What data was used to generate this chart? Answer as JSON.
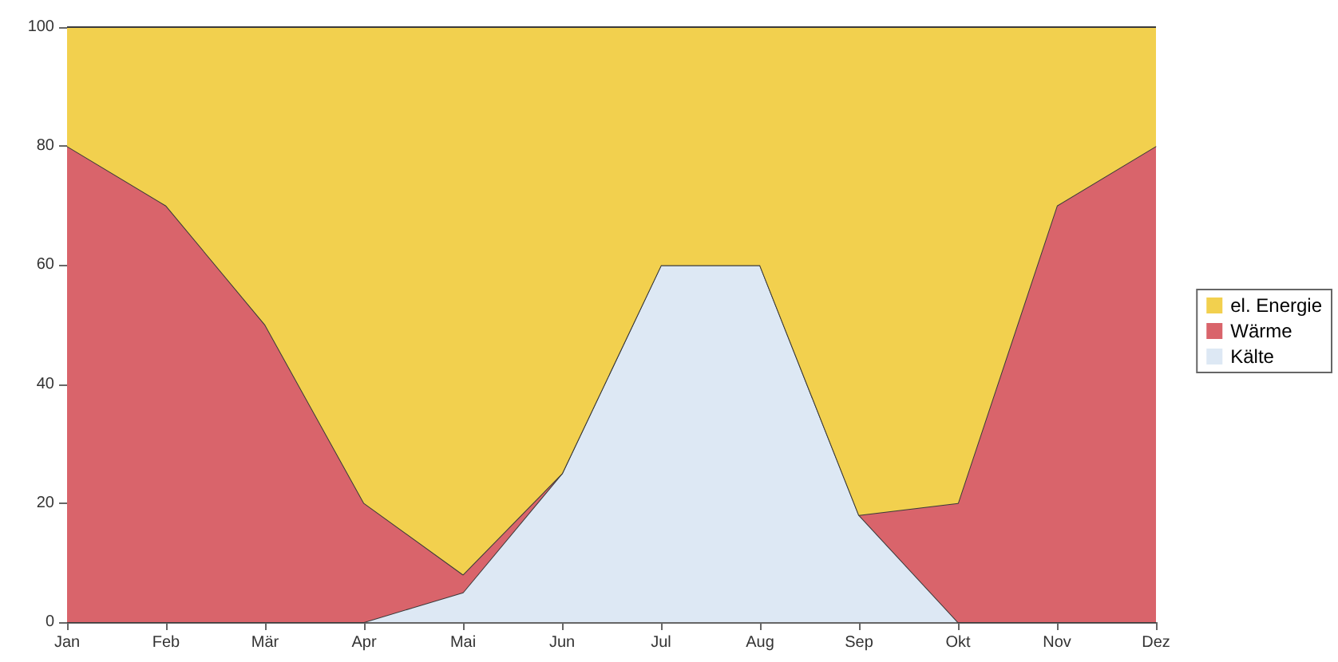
{
  "chart_data": {
    "type": "area",
    "stacked": true,
    "categories": [
      "Jan",
      "Feb",
      "Mär",
      "Apr",
      "Mai",
      "Jun",
      "Jul",
      "Aug",
      "Sep",
      "Okt",
      "Nov",
      "Dez"
    ],
    "series": [
      {
        "name": "Kälte",
        "color": "#dde8f4",
        "values": [
          0,
          0,
          0,
          0,
          5,
          25,
          60,
          60,
          18,
          0,
          0,
          0
        ]
      },
      {
        "name": "Wärme",
        "color": "#d9646b",
        "values": [
          80,
          70,
          50,
          20,
          3,
          0,
          0,
          0,
          0,
          20,
          70,
          80
        ]
      },
      {
        "name": "el. Energie",
        "color": "#f2d04e",
        "values": [
          20,
          30,
          50,
          80,
          92,
          75,
          40,
          40,
          82,
          80,
          30,
          20
        ]
      }
    ],
    "ylim": [
      0,
      100
    ],
    "yticks": [
      0,
      20,
      40,
      60,
      80,
      100
    ],
    "grid": false,
    "legend": "right",
    "marker": "none",
    "line_style": "solid"
  }
}
